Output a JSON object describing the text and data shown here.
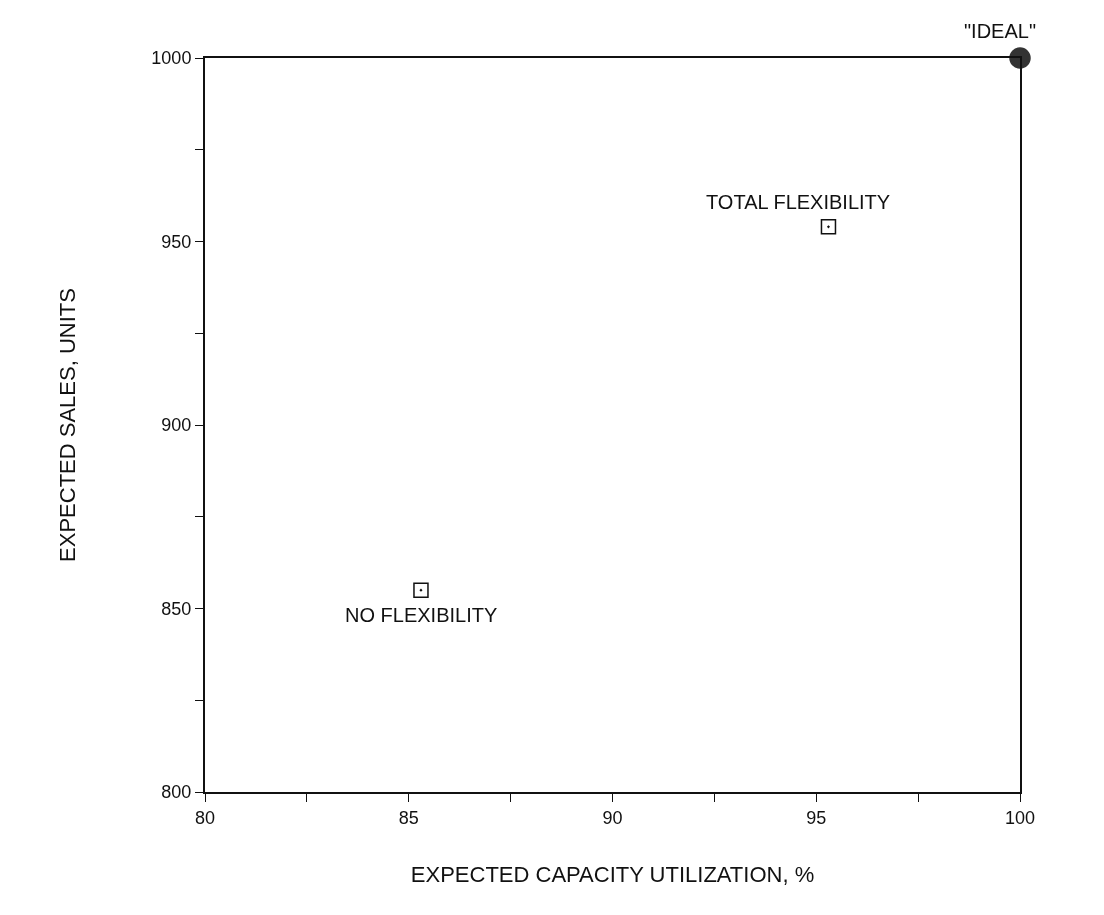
{
  "chart_data": {
    "type": "scatter",
    "xlabel": "EXPECTED CAPACITY UTILIZATION, %",
    "ylabel": "EXPECTED SALES, UNITS",
    "series": [
      {
        "x": [
          85.3,
          95.3
        ],
        "values": [
          855,
          954
        ],
        "color": "#111111",
        "marker": "square"
      },
      {
        "x": [
          100
        ],
        "values": [
          1000
        ],
        "color": "#333333",
        "marker": "circle"
      }
    ],
    "annotations": [
      {
        "text": "NO FLEXIBILITY",
        "x": 85.3,
        "y": 855
      },
      {
        "text": "TOTAL FLEXIBILITY",
        "x": 95.3,
        "y": 954
      },
      {
        "text": "\"IDEAL\"",
        "x": 100,
        "y": 1000
      }
    ],
    "xlim": [
      80,
      100
    ],
    "xticks": [
      80,
      {
        "value": 82.5,
        "label": null
      },
      85,
      {
        "value": 87.5,
        "label": null
      },
      90,
      {
        "value": 92.5,
        "label": null
      },
      95,
      {
        "value": 97.5,
        "label": null
      },
      100
    ],
    "ylim": [
      800,
      1000
    ],
    "yticks": [
      800,
      {
        "value": 825,
        "label": null
      },
      850,
      {
        "value": 875,
        "label": null
      },
      900,
      {
        "value": 925,
        "label": null
      },
      950,
      {
        "value": 975,
        "label": null
      },
      1000
    ],
    "grid": false,
    "legend": false
  }
}
